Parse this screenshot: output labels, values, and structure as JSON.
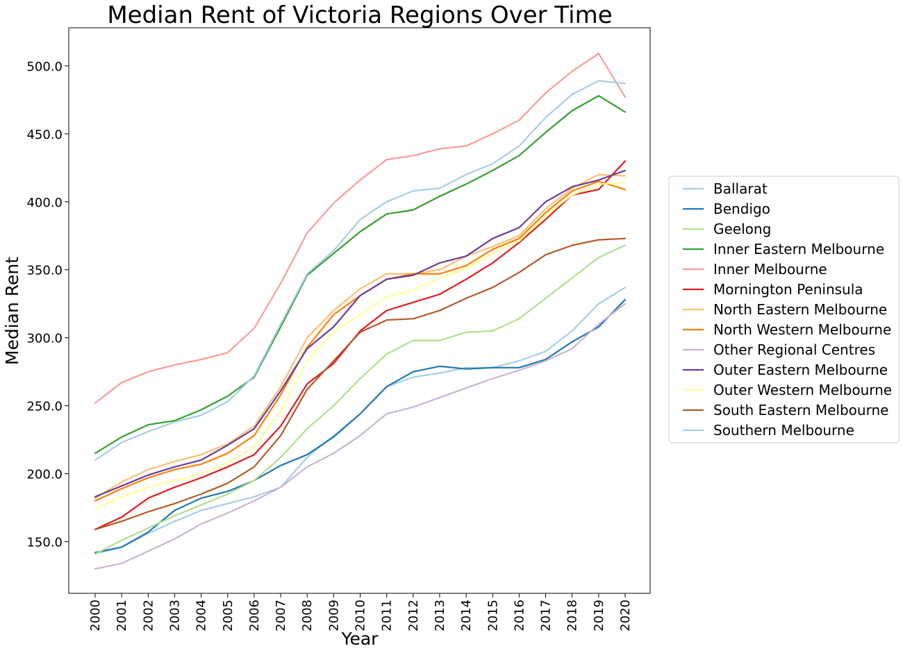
{
  "chart_data": {
    "type": "line",
    "title": "Median Rent of Victoria Regions Over Time",
    "xlabel": "Year",
    "ylabel": "Median Rent",
    "ylim": [
      112,
      528
    ],
    "yticks": [
      150,
      200,
      250,
      300,
      350,
      400,
      450,
      500
    ],
    "ytick_labels": [
      "150.0",
      "200.0",
      "250.0",
      "300.0",
      "350.0",
      "400.0",
      "450.0",
      "500.0"
    ],
    "x": [
      "2000",
      "2001",
      "2002",
      "2003",
      "2004",
      "2005",
      "2006",
      "2007",
      "2008",
      "2009",
      "2010",
      "2011",
      "2012",
      "2013",
      "2014",
      "2015",
      "2016",
      "2017",
      "2018",
      "2019",
      "2020"
    ],
    "grid": false,
    "legend_position": "center-right outside",
    "series": [
      {
        "name": "Ballarat",
        "color": "#a6cee3",
        "values": [
          141,
          146,
          156,
          165,
          173,
          178,
          183,
          190,
          212,
          228,
          244,
          264,
          271,
          274,
          278,
          278,
          283,
          290,
          305,
          325,
          337
        ]
      },
      {
        "name": "Bendigo",
        "color": "#1f78b4",
        "values": [
          142,
          146,
          157,
          173,
          182,
          187,
          195,
          206,
          214,
          227,
          244,
          264,
          275,
          279,
          277,
          278,
          278,
          284,
          297,
          308,
          328
        ]
      },
      {
        "name": "Geelong",
        "color": "#b2df8a",
        "values": [
          141,
          151,
          160,
          169,
          177,
          185,
          195,
          212,
          233,
          250,
          270,
          288,
          298,
          298,
          304,
          305,
          314,
          329,
          344,
          359,
          368
        ]
      },
      {
        "name": "Inner Eastern Melbourne",
        "color": "#33a02c",
        "values": [
          215,
          227,
          236,
          239,
          247,
          257,
          271,
          308,
          346,
          362,
          378,
          391,
          394,
          404,
          413,
          423,
          434,
          451,
          467,
          478,
          466
        ]
      },
      {
        "name": "Inner Melbourne",
        "color": "#fb9a99",
        "values": [
          252,
          267,
          275,
          280,
          284,
          289,
          307,
          340,
          377,
          399,
          416,
          431,
          434,
          439,
          441,
          450,
          460,
          480,
          496,
          509,
          477
        ]
      },
      {
        "name": "Mornington Peninsula",
        "color": "#e31a1c",
        "values": [
          159,
          168,
          182,
          190,
          197,
          205,
          214,
          235,
          266,
          281,
          305,
          320,
          326,
          332,
          343,
          355,
          370,
          387,
          405,
          409,
          430
        ]
      },
      {
        "name": "North Eastern Melbourne",
        "color": "#fdbf6f",
        "values": [
          182,
          194,
          203,
          209,
          214,
          222,
          235,
          264,
          300,
          320,
          336,
          347,
          347,
          350,
          360,
          367,
          375,
          395,
          410,
          420,
          419
        ]
      },
      {
        "name": "North Western Melbourne",
        "color": "#ff7f00",
        "values": [
          180,
          189,
          197,
          203,
          207,
          215,
          228,
          258,
          293,
          317,
          331,
          343,
          347,
          347,
          353,
          365,
          373,
          392,
          408,
          415,
          409
        ]
      },
      {
        "name": "Other Regional Centres",
        "color": "#cab2d6",
        "values": [
          130,
          134,
          143,
          152,
          163,
          171,
          180,
          190,
          205,
          215,
          228,
          244,
          249,
          256,
          263,
          270,
          276,
          283,
          292,
          310,
          325
        ]
      },
      {
        "name": "Outer Eastern Melbourne",
        "color": "#6a3d9a",
        "values": [
          183,
          191,
          199,
          205,
          210,
          221,
          233,
          261,
          292,
          308,
          331,
          343,
          346,
          355,
          360,
          373,
          381,
          400,
          411,
          416,
          423
        ]
      },
      {
        "name": "Outer Western Melbourne",
        "color": "#ffff99",
        "values": [
          174,
          183,
          190,
          195,
          200,
          208,
          220,
          246,
          283,
          304,
          317,
          330,
          335,
          344,
          351,
          362,
          371,
          390,
          405,
          413,
          414
        ]
      },
      {
        "name": "South Eastern Melbourne",
        "color": "#b15928",
        "values": [
          159,
          165,
          172,
          178,
          185,
          193,
          205,
          228,
          262,
          283,
          304,
          313,
          314,
          320,
          329,
          337,
          348,
          361,
          368,
          372,
          373
        ]
      },
      {
        "name": "Southern Melbourne",
        "color": "#a6cee3",
        "values": [
          210,
          223,
          231,
          238,
          243,
          253,
          272,
          310,
          347,
          364,
          387,
          400,
          408,
          410,
          420,
          428,
          441,
          462,
          479,
          489,
          487
        ]
      }
    ]
  }
}
